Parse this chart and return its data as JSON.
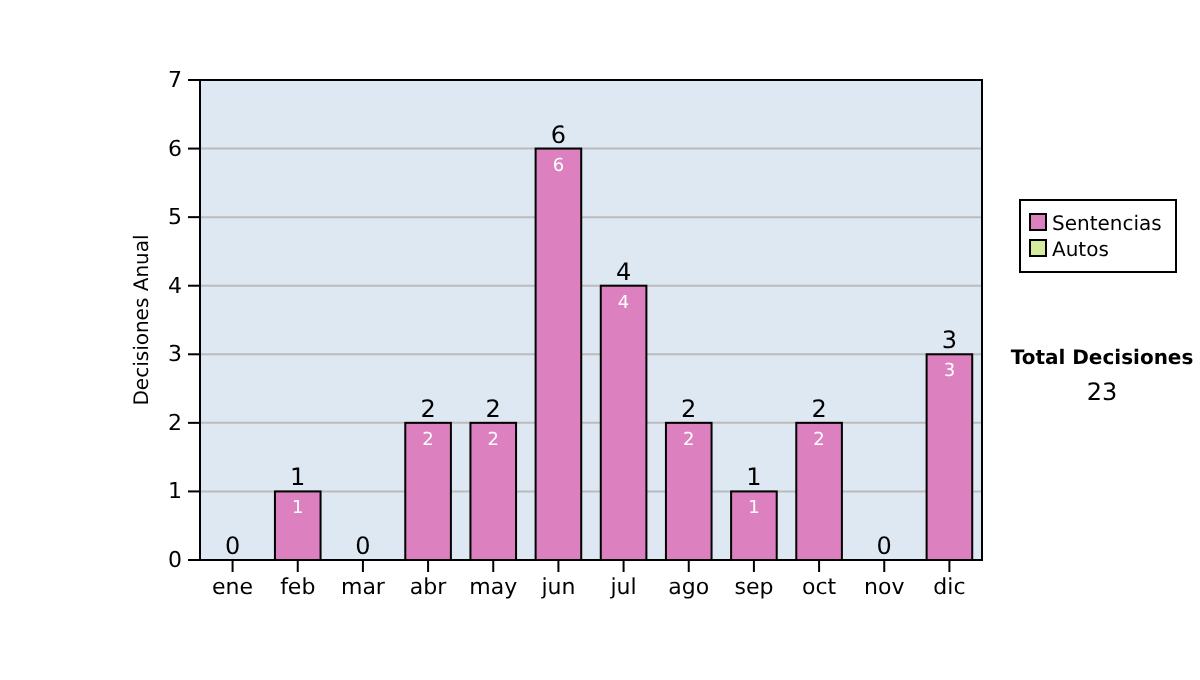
{
  "chart_data": {
    "type": "bar",
    "ylabel": "Decisiones Anual",
    "categories": [
      "ene",
      "feb",
      "mar",
      "abr",
      "may",
      "jun",
      "jul",
      "ago",
      "sep",
      "oct",
      "nov",
      "dic"
    ],
    "series": [
      {
        "name": "Sentencias",
        "color": "#dd80c0",
        "values": [
          0,
          1,
          0,
          2,
          2,
          6,
          4,
          2,
          1,
          2,
          0,
          3
        ],
        "value_labels": [
          null,
          "1",
          null,
          "2",
          "2",
          "6",
          "4",
          "2",
          "1",
          "2",
          null,
          "3"
        ]
      },
      {
        "name": "Autos",
        "color": "#d4ec9c",
        "values": [
          0,
          0,
          0,
          0,
          0,
          0,
          0,
          0,
          0,
          0,
          0,
          0
        ]
      }
    ],
    "stacked": true,
    "totals": [
      "0",
      "1",
      "0",
      "2",
      "2",
      "6",
      "4",
      "2",
      "1",
      "2",
      "0",
      "3"
    ],
    "ylim": [
      0,
      7
    ],
    "yticks": [
      0,
      1,
      2,
      3,
      4,
      5,
      6,
      7
    ],
    "grid": "y",
    "legend": "right",
    "annotations": [
      "Total Decisiones",
      "23"
    ]
  }
}
